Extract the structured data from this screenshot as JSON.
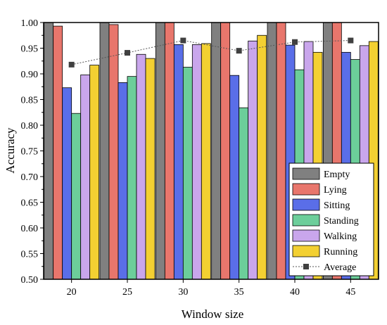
{
  "chart_data": {
    "type": "bar",
    "xlabel": "Window size",
    "ylabel": "Accuracy",
    "categories": [
      "20",
      "25",
      "30",
      "35",
      "40",
      "45"
    ],
    "ylim": [
      0.5,
      1.0
    ],
    "yticks": [
      "0.50",
      "0.55",
      "0.60",
      "0.65",
      "0.70",
      "0.75",
      "0.80",
      "0.85",
      "0.90",
      "0.95",
      "1.00"
    ],
    "grid": false,
    "legend_position": "bottom-right",
    "series": [
      {
        "name": "Empty",
        "color": "#808080",
        "values": [
          1.0,
          1.0,
          1.0,
          1.0,
          1.0,
          1.0
        ]
      },
      {
        "name": "Lying",
        "color": "#e8766c",
        "values": [
          0.993,
          0.996,
          1.0,
          1.0,
          1.0,
          1.0
        ]
      },
      {
        "name": "Sitting",
        "color": "#5a6ee8",
        "values": [
          0.873,
          0.883,
          0.957,
          0.897,
          0.956,
          0.942
        ]
      },
      {
        "name": "Standing",
        "color": "#6cce9a",
        "values": [
          0.823,
          0.895,
          0.913,
          0.834,
          0.908,
          0.928
        ]
      },
      {
        "name": "Walking",
        "color": "#c9a6ec",
        "values": [
          0.898,
          0.938,
          0.957,
          0.964,
          0.963,
          0.955
        ]
      },
      {
        "name": "Running",
        "color": "#f3d032",
        "values": [
          0.917,
          0.93,
          0.959,
          0.975,
          0.942,
          0.963
        ]
      }
    ],
    "line_series": {
      "name": "Average",
      "color": "#404040",
      "values": [
        0.918,
        0.941,
        0.965,
        0.945,
        0.962,
        0.965
      ]
    }
  }
}
